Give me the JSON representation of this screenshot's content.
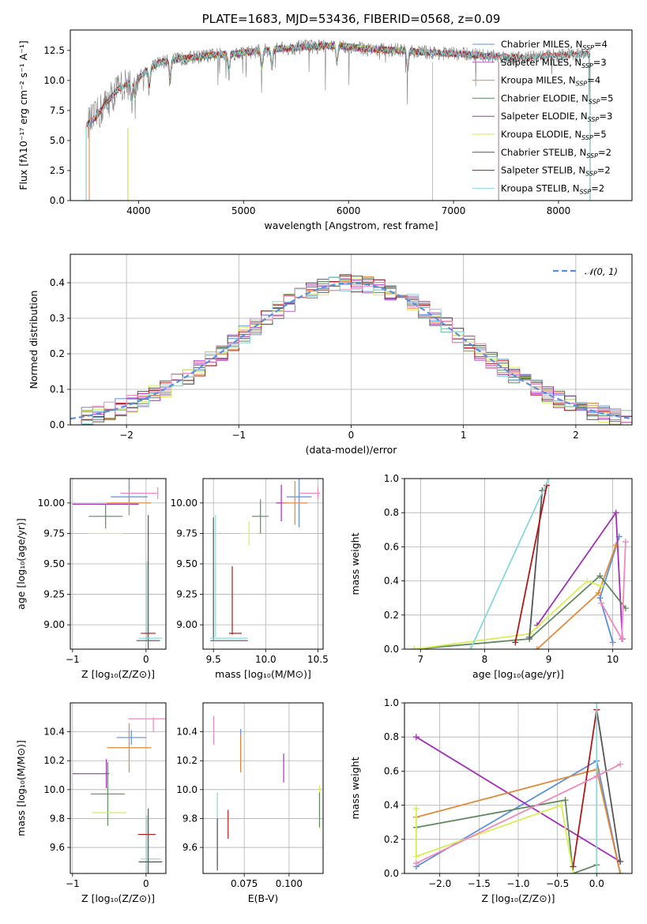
{
  "colors": {
    "chabrier_miles": "#5b8fde",
    "salpeter_miles": "#b060c8",
    "kroupa_miles": "#e08a3c",
    "chabrier_elodie": "#5f8a5f",
    "salpeter_elodie": "#a32fb8",
    "kroupa_elodie": "#d8ee55",
    "chabrier_stelib": "#555555",
    "salpeter_stelib": "#b01818",
    "kroupa_stelib": "#88d8d8",
    "gauss": "#5b8fde",
    "pink": "#ee88bb",
    "grid": "#b0b0b0",
    "data_spectrum": "#808080"
  },
  "chart_data": [
    {
      "id": "spectrum",
      "type": "line",
      "title": "PLATE=1683, MJD=53436, FIBERID=0568, z=0.09",
      "xlabel": "wavelength [Angstrom, rest frame]",
      "ylabel": "Flux [fλ10⁻¹⁷ erg cm⁻² s⁻¹ A⁻¹]",
      "xlim": [
        3350,
        8700
      ],
      "ylim": [
        0,
        14.2
      ],
      "xticks": [
        "4000",
        "5000",
        "6000",
        "7000",
        "8000"
      ],
      "yticks": [
        "0.0",
        "2.5",
        "5.0",
        "7.5",
        "10.0",
        "12.5"
      ],
      "legend_position": "right",
      "shape_points": [
        [
          3500,
          6.3
        ],
        [
          3580,
          6.8
        ],
        [
          3700,
          8.2
        ],
        [
          3800,
          9.2
        ],
        [
          3900,
          9.8
        ],
        [
          4000,
          10.2
        ],
        [
          4100,
          11.0
        ],
        [
          4200,
          11.5
        ],
        [
          4400,
          11.8
        ],
        [
          4700,
          12.1
        ],
        [
          5000,
          12.3
        ],
        [
          5300,
          12.6
        ],
        [
          5600,
          12.8
        ],
        [
          5900,
          12.9
        ],
        [
          6200,
          12.6
        ],
        [
          6500,
          12.5
        ],
        [
          6800,
          12.3
        ],
        [
          7100,
          12.2
        ],
        [
          7400,
          12.0
        ],
        [
          7700,
          11.9
        ],
        [
          8000,
          12.1
        ],
        [
          8300,
          12.2
        ]
      ],
      "series": [
        {
          "name": "Chabrier MILES, N",
          "nssp": "=4",
          "color_key": "chabrier_miles",
          "x_range": [
            3530,
            7430
          ]
        },
        {
          "name": "Salpeter MILES, N",
          "nssp": "=3",
          "color_key": "salpeter_miles",
          "x_range": [
            3530,
            7430
          ]
        },
        {
          "name": "Kroupa MILES, N",
          "nssp": "=4",
          "color_key": "kroupa_miles",
          "x_range": [
            3530,
            7430
          ]
        },
        {
          "name": "Chabrier ELODIE, N",
          "nssp": "=5",
          "color_key": "chabrier_elodie",
          "x_range": [
            3900,
            6800
          ]
        },
        {
          "name": "Salpeter ELODIE, N",
          "nssp": "=3",
          "color_key": "salpeter_elodie",
          "x_range": [
            3900,
            6800
          ]
        },
        {
          "name": "Kroupa ELODIE, N",
          "nssp": "=5",
          "color_key": "kroupa_elodie",
          "x_range": [
            3900,
            6800
          ]
        },
        {
          "name": "Chabrier STELIB, N",
          "nssp": "=2",
          "color_key": "chabrier_stelib",
          "x_range": [
            3500,
            8300
          ]
        },
        {
          "name": "Salpeter STELIB, N",
          "nssp": "=2",
          "color_key": "salpeter_stelib",
          "x_range": [
            3500,
            8300
          ]
        },
        {
          "name": "Kroupa STELIB, N",
          "nssp": "=2",
          "color_key": "kroupa_stelib",
          "x_range": [
            3500,
            8300
          ]
        }
      ]
    },
    {
      "id": "residuals",
      "type": "line",
      "xlabel": "(data-model)/error",
      "ylabel": "Normed distribution",
      "xlim": [
        -2.5,
        2.5
      ],
      "ylim": [
        0,
        0.48
      ],
      "xticks": [
        "−2",
        "−1",
        "0",
        "1",
        "2"
      ],
      "yticks": [
        "0.0",
        "0.1",
        "0.2",
        "0.3",
        "0.4"
      ],
      "legend": "𝒩(0, 1)",
      "legend_position": "top-right",
      "bin_width": 0.1,
      "hist_colors": [
        "chabrier_miles",
        "salpeter_miles",
        "kroupa_miles",
        "chabrier_elodie",
        "salpeter_elodie",
        "kroupa_elodie",
        "chabrier_stelib",
        "salpeter_stelib",
        "kroupa_stelib",
        "pink"
      ]
    },
    {
      "id": "age_vs_Z",
      "type": "scatter",
      "xlabel": "Z [log₁₀(Z/Z⊙)]",
      "ylabel": "age  [log₁₀(age/yr)]",
      "xlim": [
        -1.03,
        0.27
      ],
      "ylim": [
        8.8,
        10.2
      ],
      "xticks": [
        "−1",
        "0"
      ],
      "yticks": [
        "9.00",
        "9.25",
        "9.50",
        "9.75",
        "10.00"
      ],
      "points": [
        {
          "x": -0.23,
          "y": 10.05,
          "xerr": 0.25,
          "yerr": 0.15,
          "color_key": "chabrier_miles"
        },
        {
          "x": -0.55,
          "y": 9.99,
          "xerr": 0.45,
          "yerr": 0.0,
          "color_key": "salpeter_elodie"
        },
        {
          "x": -0.23,
          "y": 10.0,
          "xerr": 0.3,
          "yerr": 0.1,
          "color_key": "kroupa_miles"
        },
        {
          "x": -0.55,
          "y": 9.89,
          "xerr": 0.23,
          "yerr": 0.1,
          "color_key": "chabrier_elodie"
        },
        {
          "x": -0.55,
          "y": 9.75,
          "xerr": 0.23,
          "yerr": 0.0,
          "color_key": "kroupa_elodie"
        },
        {
          "x": 0.01,
          "y": 9.2,
          "xerr": 0.0,
          "yerr": 0.32,
          "color_key": "kroupa_stelib"
        },
        {
          "x": 0.03,
          "y": 9.3,
          "xerr": 0.0,
          "yerr": 0.6,
          "color_key": "chabrier_stelib"
        },
        {
          "x": 0.03,
          "y": 8.93,
          "xerr": 0.1,
          "yerr": 0.0,
          "color_key": "salpeter_stelib"
        },
        {
          "x": 0.06,
          "y": 8.89,
          "xerr": 0.16,
          "yerr": 0.0,
          "color_key": "kroupa_stelib"
        },
        {
          "x": 0.03,
          "y": 8.87,
          "xerr": 0.16,
          "yerr": 0.0,
          "color_key": "chabrier_stelib"
        },
        {
          "x": -0.1,
          "y": 10.08,
          "xerr": 0.25,
          "yerr": 0.0,
          "color_key": "pink"
        },
        {
          "x": 0.16,
          "y": 10.08,
          "xerr": 0.0,
          "yerr": 0.05,
          "color_key": "pink"
        }
      ]
    },
    {
      "id": "age_vs_mass",
      "type": "scatter",
      "xlabel": "mass [log₁₀(M/M⊙)]",
      "xlim": [
        9.4,
        10.55
      ],
      "ylim": [
        8.8,
        10.2
      ],
      "xticks": [
        "9.5",
        "10.0",
        "10.5"
      ],
      "yticks": [
        "9.00",
        "9.25",
        "9.50",
        "9.75",
        "10.00"
      ],
      "points": [
        {
          "x": 10.32,
          "y": 10.05,
          "xerr": 0.12,
          "yerr": 0.25,
          "color_key": "chabrier_miles"
        },
        {
          "x": 10.15,
          "y": 10.0,
          "xerr": 0.05,
          "yerr": 0.15,
          "color_key": "salpeter_elodie"
        },
        {
          "x": 10.28,
          "y": 10.0,
          "xerr": 0.12,
          "yerr": 0.18,
          "color_key": "kroupa_miles"
        },
        {
          "x": 9.95,
          "y": 9.89,
          "xerr": 0.08,
          "yerr": 0.14,
          "color_key": "chabrier_elodie"
        },
        {
          "x": 9.84,
          "y": 9.75,
          "xerr": 0.08,
          "yerr": 0.1,
          "color_key": "kroupa_elodie"
        },
        {
          "x": 9.52,
          "y": 9.4,
          "xerr": 0.0,
          "yerr": 0.5,
          "color_key": "kroupa_stelib"
        },
        {
          "x": 9.5,
          "y": 9.38,
          "xerr": 0.0,
          "yerr": 0.5,
          "color_key": "chabrier_stelib"
        },
        {
          "x": 9.68,
          "y": 9.2,
          "xerr": 0.0,
          "yerr": 0.28,
          "color_key": "salpeter_stelib"
        },
        {
          "x": 9.71,
          "y": 8.93,
          "xerr": 0.06,
          "yerr": 0.0,
          "color_key": "salpeter_stelib"
        },
        {
          "x": 9.65,
          "y": 8.89,
          "xerr": 0.18,
          "yerr": 0.0,
          "color_key": "kroupa_stelib"
        },
        {
          "x": 9.65,
          "y": 8.87,
          "xerr": 0.18,
          "yerr": 0.0,
          "color_key": "chabrier_stelib"
        },
        {
          "x": 10.42,
          "y": 10.08,
          "xerr": 0.1,
          "yerr": 0.0,
          "color_key": "pink"
        },
        {
          "x": 10.5,
          "y": 10.08,
          "xerr": 0.0,
          "yerr": 0.05,
          "color_key": "pink"
        }
      ]
    },
    {
      "id": "weight_vs_age",
      "type": "line",
      "xlabel": "age  [log₁₀(age/yr)]",
      "ylabel": "mass weight",
      "xlim": [
        6.75,
        10.3
      ],
      "ylim": [
        0,
        1.0
      ],
      "xticks": [
        "7",
        "8",
        "9",
        "10"
      ],
      "yticks": [
        "0.0",
        "0.2",
        "0.4",
        "0.6",
        "0.8",
        "1.0"
      ],
      "series": [
        {
          "color_key": "chabrier_miles",
          "x": [
            10.0,
            9.8,
            10.1
          ],
          "y": [
            0.04,
            0.3,
            0.66
          ]
        },
        {
          "color_key": "salpeter_elodie",
          "x": [
            8.82,
            10.05,
            10.15
          ],
          "y": [
            0.14,
            0.8,
            0.06
          ]
        },
        {
          "color_key": "kroupa_miles",
          "x": [
            8.82,
            9.78,
            10.05
          ],
          "y": [
            0.0,
            0.33,
            0.61
          ]
        },
        {
          "color_key": "chabrier_elodie",
          "x": [
            6.9,
            8.7,
            9.8,
            10.2
          ],
          "y": [
            0.0,
            0.06,
            0.43,
            0.24
          ]
        },
        {
          "color_key": "kroupa_elodie",
          "x": [
            6.9,
            8.7,
            9.6,
            9.82
          ],
          "y": [
            0.0,
            0.09,
            0.4,
            0.37
          ]
        },
        {
          "color_key": "chabrier_stelib",
          "x": [
            8.7,
            8.9
          ],
          "y": [
            0.07,
            0.93
          ]
        },
        {
          "color_key": "salpeter_stelib",
          "x": [
            8.48,
            8.97
          ],
          "y": [
            0.04,
            0.96
          ]
        },
        {
          "color_key": "kroupa_stelib",
          "x": [
            7.78,
            9.0
          ],
          "y": [
            0.0,
            1.0
          ]
        },
        {
          "color_key": "pink",
          "x": [
            9.82,
            10.14,
            10.2
          ],
          "y": [
            0.27,
            0.06,
            0.63
          ]
        }
      ]
    },
    {
      "id": "mass_vs_Z",
      "type": "scatter",
      "xlabel": "Z [log₁₀(Z/Z⊙)]",
      "ylabel": "mass [log₁₀(M/M⊙)]",
      "xlim": [
        -1.03,
        0.27
      ],
      "ylim": [
        9.42,
        10.6
      ],
      "xticks": [
        "−1",
        "0"
      ],
      "yticks": [
        "9.6",
        "9.8",
        "10.0",
        "10.2",
        "10.4"
      ],
      "points": [
        {
          "x": -0.2,
          "y": 10.36,
          "xerr": 0.2,
          "yerr": 0.05,
          "color_key": "chabrier_miles"
        },
        {
          "x": -0.75,
          "y": 10.11,
          "xerr": 0.25,
          "yerr": 0.0,
          "color_key": "salpeter_elodie"
        },
        {
          "x": -0.54,
          "y": 10.11,
          "xerr": 0.0,
          "yerr": 0.1,
          "color_key": "salpeter_elodie"
        },
        {
          "x": -0.23,
          "y": 10.29,
          "xerr": 0.3,
          "yerr": 0.17,
          "color_key": "kroupa_miles"
        },
        {
          "x": -0.52,
          "y": 9.97,
          "xerr": 0.23,
          "yerr": 0.22,
          "color_key": "chabrier_elodie"
        },
        {
          "x": -0.5,
          "y": 9.84,
          "xerr": 0.23,
          "yerr": 0.0,
          "color_key": "kroupa_elodie"
        },
        {
          "x": 0.01,
          "y": 9.62,
          "xerr": 0.0,
          "yerr": 0.2,
          "color_key": "kroupa_stelib"
        },
        {
          "x": 0.06,
          "y": 9.52,
          "xerr": 0.14,
          "yerr": 0.0,
          "color_key": "kroupa_stelib"
        },
        {
          "x": 0.01,
          "y": 9.69,
          "xerr": 0.12,
          "yerr": 0.0,
          "color_key": "salpeter_stelib"
        },
        {
          "x": 0.03,
          "y": 9.62,
          "xerr": 0.0,
          "yerr": 0.25,
          "color_key": "chabrier_stelib"
        },
        {
          "x": 0.06,
          "y": 9.5,
          "xerr": 0.16,
          "yerr": 0.0,
          "color_key": "chabrier_stelib"
        },
        {
          "x": 0.03,
          "y": 10.49,
          "xerr": 0.27,
          "yerr": 0.0,
          "color_key": "pink"
        },
        {
          "x": 0.1,
          "y": 10.45,
          "xerr": 0.0,
          "yerr": 0.05,
          "color_key": "pink"
        }
      ]
    },
    {
      "id": "mass_vs_ebv",
      "type": "scatter",
      "xlabel": "E(B-V)",
      "xlim": [
        0.052,
        0.119
      ],
      "ylim": [
        9.42,
        10.6
      ],
      "xticks": [
        "0.075",
        "0.100"
      ],
      "yticks": [
        "9.6",
        "9.8",
        "10.0",
        "10.2",
        "10.4"
      ],
      "points": [
        {
          "x": 0.073,
          "y": 10.27,
          "xerr": 0.0,
          "yerr": 0.15,
          "color_key": "chabrier_miles"
        },
        {
          "x": 0.073,
          "y": 10.25,
          "xerr": 0.0,
          "yerr": 0.13,
          "color_key": "kroupa_miles"
        },
        {
          "x": 0.097,
          "y": 10.15,
          "xerr": 0.0,
          "yerr": 0.1,
          "color_key": "salpeter_elodie"
        },
        {
          "x": 0.117,
          "y": 9.88,
          "xerr": 0.0,
          "yerr": 0.15,
          "color_key": "kroupa_elodie"
        },
        {
          "x": 0.117,
          "y": 9.86,
          "xerr": 0.0,
          "yerr": 0.12,
          "color_key": "chabrier_elodie"
        },
        {
          "x": 0.066,
          "y": 9.76,
          "xerr": 0.0,
          "yerr": 0.1,
          "color_key": "salpeter_stelib"
        },
        {
          "x": 0.06,
          "y": 9.73,
          "xerr": 0.0,
          "yerr": 0.25,
          "color_key": "kroupa_stelib"
        },
        {
          "x": 0.06,
          "y": 9.62,
          "xerr": 0.0,
          "yerr": 0.18,
          "color_key": "chabrier_stelib"
        },
        {
          "x": 0.058,
          "y": 10.41,
          "xerr": 0.0,
          "yerr": 0.1,
          "color_key": "pink"
        }
      ]
    },
    {
      "id": "weight_vs_Z",
      "type": "line",
      "xlabel": "Z [log₁₀(Z/Z⊙)]",
      "ylabel": "mass weight",
      "xlim": [
        -2.45,
        0.45
      ],
      "ylim": [
        0,
        1.0
      ],
      "xticks": [
        "−2.0",
        "−1.5",
        "−1.0",
        "−0.5",
        "0.0"
      ],
      "yticks": [
        "0.0",
        "0.2",
        "0.4",
        "0.6",
        "0.8",
        "1.0"
      ],
      "series": [
        {
          "color_key": "chabrier_miles",
          "x": [
            -2.3,
            0.0,
            0.3
          ],
          "y": [
            0.04,
            0.66,
            0.0
          ]
        },
        {
          "color_key": "salpeter_elodie",
          "x": [
            -2.3,
            0.3
          ],
          "y": [
            0.8,
            0.07
          ]
        },
        {
          "color_key": "kroupa_miles",
          "x": [
            -2.3,
            0.0,
            0.3
          ],
          "y": [
            0.33,
            0.61,
            0.0
          ]
        },
        {
          "color_key": "chabrier_elodie",
          "x": [
            -2.3,
            -0.4,
            -0.3,
            0.0
          ],
          "y": [
            0.27,
            0.43,
            0.0,
            0.05
          ]
        },
        {
          "color_key": "kroupa_elodie",
          "x": [
            -2.3,
            -2.3,
            -0.45,
            -0.3
          ],
          "y": [
            0.38,
            0.1,
            0.4,
            0.0
          ]
        },
        {
          "color_key": "chabrier_stelib",
          "x": [
            0.0,
            0.3
          ],
          "y": [
            0.96,
            0.07
          ]
        },
        {
          "color_key": "salpeter_stelib",
          "x": [
            -0.3,
            0.0
          ],
          "y": [
            0.04,
            0.96
          ]
        },
        {
          "color_key": "kroupa_stelib",
          "x": [
            0.0,
            0.0
          ],
          "y": [
            0.0,
            1.0
          ]
        },
        {
          "color_key": "pink",
          "x": [
            -2.3,
            0.0,
            0.3
          ],
          "y": [
            0.06,
            0.57,
            0.64
          ]
        }
      ]
    }
  ]
}
